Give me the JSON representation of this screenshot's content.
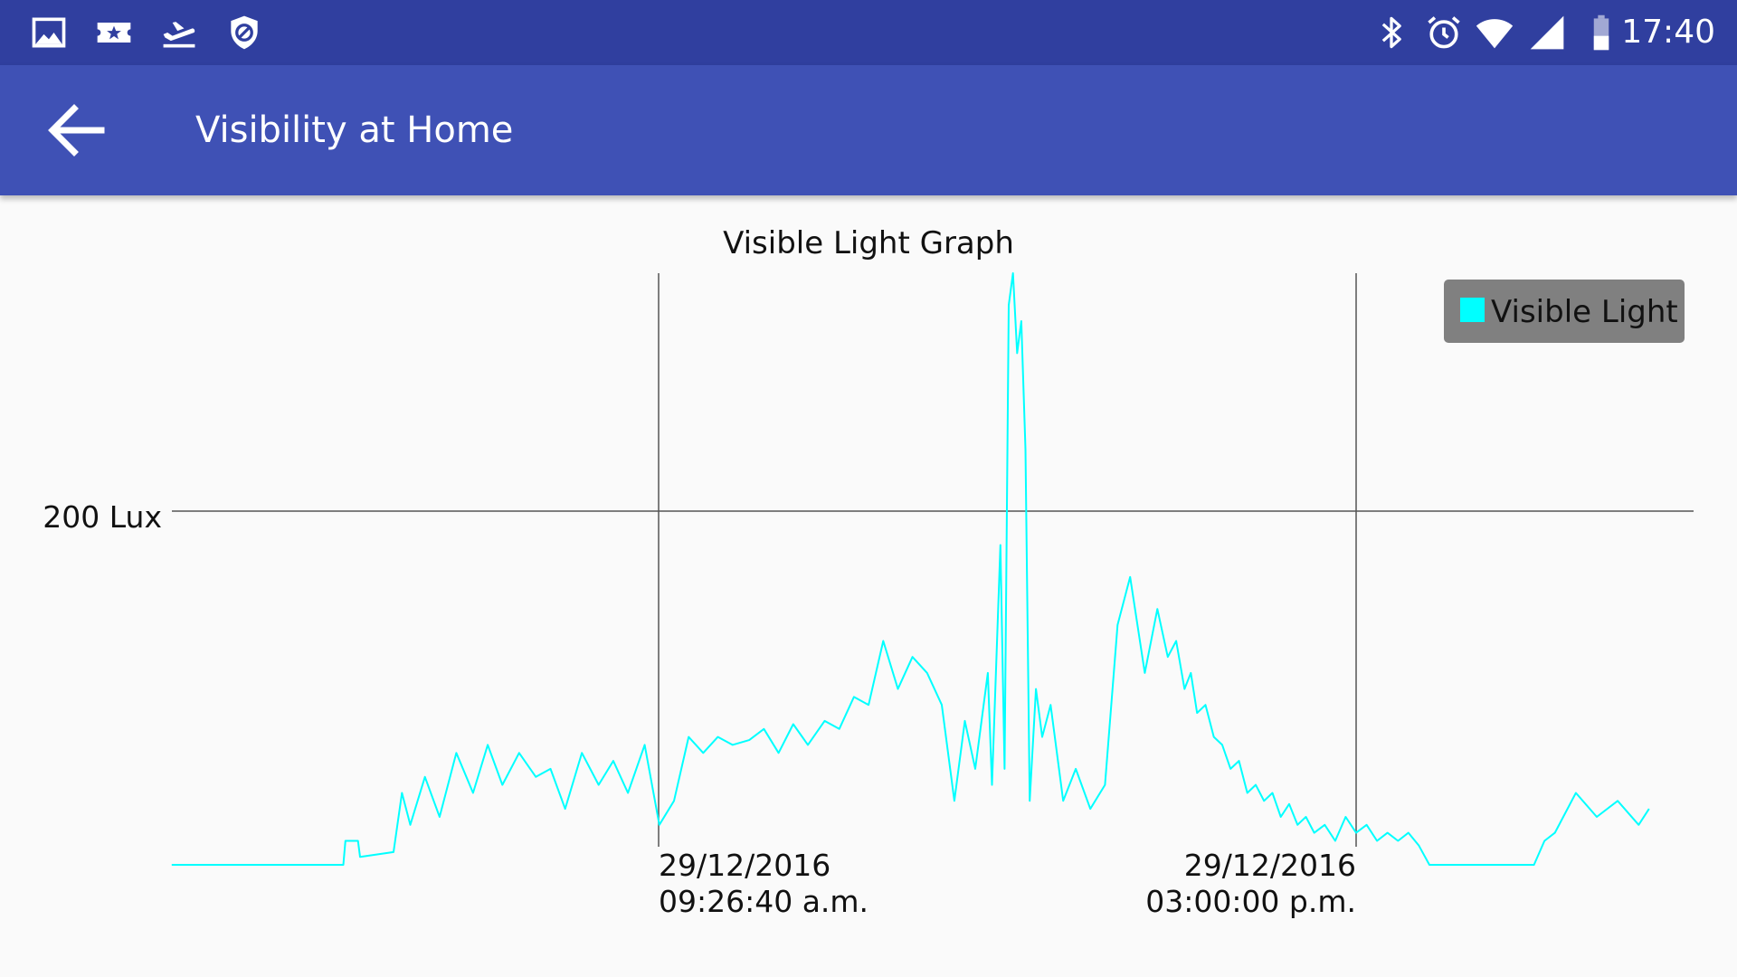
{
  "status_bar": {
    "time": "17:40",
    "left_icons": [
      "image-icon",
      "ticket-star-icon",
      "flight-takeoff-icon",
      "blocked-shield-icon"
    ],
    "right_icons": [
      "bluetooth-icon",
      "alarm-icon",
      "wifi-icon",
      "signal-icon",
      "battery-icon"
    ]
  },
  "app_bar": {
    "title": "Visibility at Home",
    "back_icon": "arrow-back-icon"
  },
  "colors": {
    "status_bar": "#303f9f",
    "app_bar": "#3f51b5",
    "series": "#00ffff",
    "legend_background": "#808080",
    "grid": "#555555"
  },
  "chart_data": {
    "type": "line",
    "title": "Visible Light Graph",
    "xlabel": "",
    "ylabel": "",
    "legend": {
      "placement": "top-right",
      "entries": [
        "Visible Light"
      ]
    },
    "grid": true,
    "x_tick_labels": [
      [
        "29/12/2016",
        "09:26:40 a.m."
      ],
      [
        "29/12/2016",
        "03:00:00 p.m."
      ]
    ],
    "y_tick_labels": [
      "200 Lux"
    ],
    "ylim": [
      0,
      370
    ],
    "series": [
      {
        "name": "Visible Light",
        "x": [
          "05:34",
          "06:56",
          "06:57",
          "07:03",
          "07:04",
          "07:20",
          "07:24",
          "07:28",
          "07:35",
          "07:42",
          "07:50",
          "07:58",
          "08:05",
          "08:12",
          "08:20",
          "08:28",
          "08:35",
          "08:42",
          "08:50",
          "08:58",
          "09:05",
          "09:12",
          "09:20",
          "09:27",
          "09:34",
          "09:41",
          "09:48",
          "09:55",
          "10:02",
          "10:10",
          "10:17",
          "10:24",
          "10:31",
          "10:38",
          "10:46",
          "10:53",
          "11:00",
          "11:07",
          "11:14",
          "11:21",
          "11:28",
          "11:35",
          "11:42",
          "11:48",
          "11:53",
          "11:58",
          "12:04",
          "12:06",
          "12:10",
          "12:12",
          "12:14",
          "12:16",
          "12:18",
          "12:20",
          "12:22",
          "12:24",
          "12:27",
          "12:30",
          "12:34",
          "12:40",
          "12:46",
          "12:53",
          "13:00",
          "13:06",
          "13:12",
          "13:19",
          "13:25",
          "13:30",
          "13:34",
          "13:38",
          "13:41",
          "13:44",
          "13:48",
          "13:52",
          "13:56",
          "14:00",
          "14:04",
          "14:08",
          "14:12",
          "14:16",
          "14:20",
          "14:24",
          "14:28",
          "14:32",
          "14:36",
          "14:40",
          "14:45",
          "14:50",
          "14:55",
          "15:00",
          "15:05",
          "15:10",
          "15:15",
          "15:20",
          "15:25",
          "15:30",
          "15:35",
          "16:00",
          "16:25",
          "16:30",
          "16:35",
          "16:45",
          "16:55",
          "17:05",
          "17:15",
          "17:20"
        ],
        "values": [
          0,
          0,
          15,
          15,
          5,
          8,
          45,
          25,
          55,
          30,
          70,
          45,
          75,
          50,
          70,
          55,
          60,
          35,
          70,
          50,
          65,
          45,
          75,
          25,
          40,
          80,
          70,
          80,
          75,
          78,
          85,
          70,
          88,
          75,
          90,
          85,
          105,
          100,
          140,
          110,
          130,
          120,
          100,
          40,
          90,
          60,
          120,
          50,
          200,
          60,
          350,
          370,
          320,
          340,
          260,
          40,
          110,
          80,
          100,
          40,
          60,
          35,
          50,
          150,
          180,
          120,
          160,
          130,
          140,
          110,
          120,
          95,
          100,
          80,
          75,
          60,
          65,
          45,
          50,
          40,
          45,
          30,
          38,
          25,
          30,
          20,
          25,
          15,
          30,
          20,
          25,
          15,
          20,
          15,
          20,
          12,
          0,
          0,
          0,
          15,
          20,
          45,
          30,
          40,
          25,
          35
        ]
      }
    ]
  }
}
